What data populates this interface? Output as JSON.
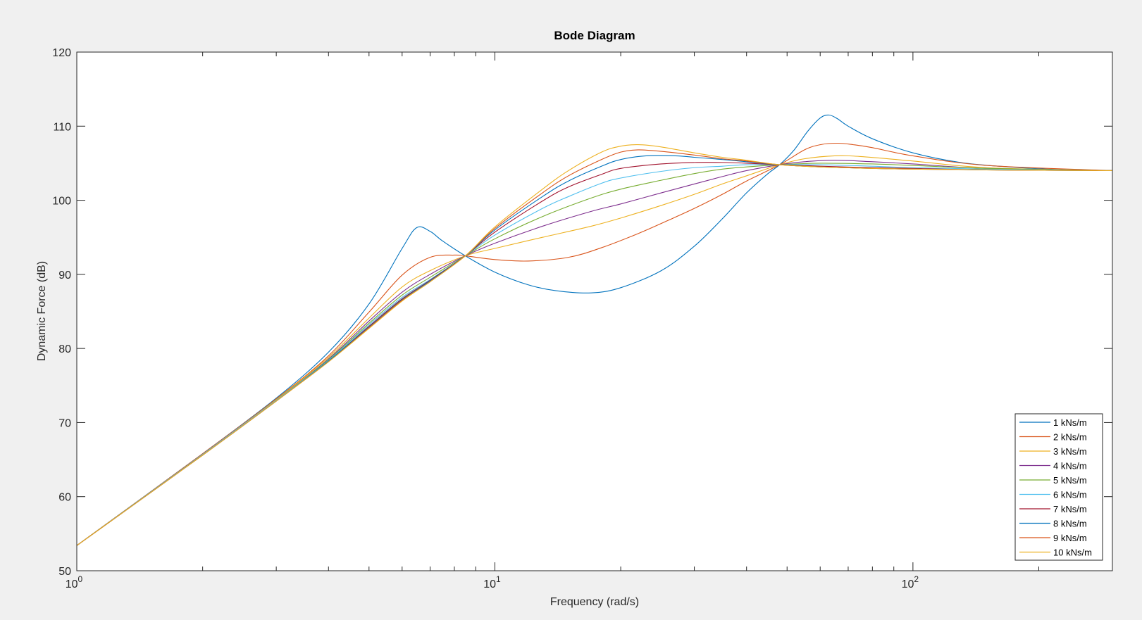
{
  "chart_data": {
    "type": "line",
    "title": "Bode Diagram",
    "xlabel": "Frequency  (rad/s)",
    "ylabel": "Dynamic Force (dB)",
    "xscale": "log",
    "xlim": [
      1,
      300
    ],
    "ylim": [
      50,
      120
    ],
    "x_ticks": [
      {
        "value": 1,
        "base": "10",
        "exp": "0"
      },
      {
        "value": 10,
        "base": "10",
        "exp": "1"
      },
      {
        "value": 100,
        "base": "10",
        "exp": "2"
      }
    ],
    "y_ticks": [
      50,
      60,
      70,
      80,
      90,
      100,
      110,
      120
    ],
    "grid": false,
    "legend_position": "bottom-right",
    "series": [
      {
        "name": "1 kNs/m",
        "color": "#0072BD",
        "x": [
          1,
          2,
          3,
          4,
          5,
          6,
          6.5,
          7,
          7.5,
          8.5,
          10,
          12,
          14,
          17,
          20,
          25,
          30,
          35,
          40,
          45,
          48,
          52,
          56,
          60,
          63,
          66,
          70,
          80,
          100,
          130,
          170,
          230,
          300
        ],
        "y": [
          53.4,
          65.8,
          73.3,
          79.5,
          86,
          93.5,
          96.3,
          95.8,
          94.5,
          92.5,
          90.3,
          88.6,
          87.8,
          87.5,
          88.2,
          90.5,
          93.8,
          97.5,
          101,
          103.6,
          104.8,
          106.8,
          109.3,
          111.1,
          111.5,
          111,
          110,
          108.3,
          106.4,
          105.1,
          104.5,
          104.1,
          104
        ]
      },
      {
        "name": "2 kNs/m",
        "color": "#D95319",
        "x": [
          1,
          2,
          3,
          4,
          5,
          6,
          7,
          8,
          8.5,
          10,
          12,
          15,
          18,
          22,
          26,
          30,
          35,
          40,
          48,
          55,
          60,
          66,
          72,
          80,
          100,
          150,
          300
        ],
        "y": [
          53.4,
          65.8,
          73.2,
          79,
          84.9,
          89.9,
          92.3,
          92.6,
          92.5,
          92,
          91.8,
          92.3,
          93.6,
          95.5,
          97.3,
          98.9,
          100.8,
          102.6,
          104.8,
          106.8,
          107.5,
          107.7,
          107.5,
          107.1,
          106,
          104.7,
          104
        ]
      },
      {
        "name": "3 kNs/m",
        "color": "#EDB120",
        "x": [
          1,
          2,
          3,
          4,
          5,
          6,
          7,
          8.5,
          10,
          13,
          17,
          20,
          25,
          30,
          35,
          40,
          48,
          55,
          65,
          75,
          100,
          150,
          300
        ],
        "y": [
          53.4,
          65.7,
          73.1,
          78.8,
          84.1,
          88.3,
          90.5,
          92.5,
          93.5,
          95,
          96.5,
          97.6,
          99.3,
          100.8,
          102.2,
          103.3,
          104.8,
          105.6,
          106,
          105.9,
          105.3,
          104.4,
          104
        ]
      },
      {
        "name": "4 kNs/m",
        "color": "#7E2F8E",
        "x": [
          1,
          2,
          3,
          4,
          5,
          6,
          7,
          8.5,
          10,
          13,
          17,
          20,
          25,
          30,
          35,
          40,
          48,
          55,
          65,
          80,
          100,
          150,
          300
        ],
        "y": [
          53.4,
          65.7,
          73,
          78.6,
          83.7,
          87.6,
          90,
          92.5,
          94.2,
          96.5,
          98.5,
          99.5,
          101,
          102.2,
          103.2,
          104,
          104.8,
          105.2,
          105.4,
          105.2,
          104.9,
          104.3,
          104
        ]
      },
      {
        "name": "5 kNs/m",
        "color": "#77AC30",
        "x": [
          1,
          2,
          3,
          4,
          5,
          6,
          7,
          8.5,
          10,
          13,
          17,
          20,
          25,
          30,
          35,
          40,
          48,
          60,
          80,
          100,
          150,
          300
        ],
        "y": [
          53.4,
          65.7,
          73,
          78.5,
          83.4,
          87.2,
          89.6,
          92.5,
          94.8,
          97.8,
          100.3,
          101.5,
          102.7,
          103.6,
          104.2,
          104.5,
          104.8,
          105,
          104.9,
          104.7,
          104.3,
          104
        ]
      },
      {
        "name": "6 kNs/m",
        "color": "#4DBEEE",
        "x": [
          1,
          2,
          3,
          4,
          5,
          6,
          7,
          8.5,
          10,
          13,
          15,
          18,
          20,
          25,
          30,
          35,
          40,
          48,
          60,
          80,
          100,
          150,
          300
        ],
        "y": [
          53.4,
          65.7,
          73,
          78.4,
          83.2,
          86.9,
          89.3,
          92.5,
          95.3,
          98.9,
          100.5,
          102.3,
          103,
          103.9,
          104.4,
          104.6,
          104.8,
          104.8,
          104.8,
          104.6,
          104.4,
          104.2,
          104
        ]
      },
      {
        "name": "7 kNs/m",
        "color": "#A2142F",
        "x": [
          1,
          2,
          3,
          4,
          5,
          6,
          7,
          8.5,
          10,
          13,
          15,
          18,
          20,
          25,
          30,
          35,
          40,
          48,
          60,
          80,
          100,
          150,
          300
        ],
        "y": [
          53.4,
          65.6,
          72.9,
          78.3,
          83,
          86.7,
          89.2,
          92.5,
          95.7,
          99.9,
          101.8,
          103.5,
          104.3,
          104.9,
          105.1,
          105.1,
          105,
          104.8,
          104.6,
          104.4,
          104.3,
          104.1,
          104
        ]
      },
      {
        "name": "8 kNs/m",
        "color": "#0072BD",
        "x": [
          1,
          2,
          3,
          4,
          5,
          6,
          7,
          8.5,
          10,
          13,
          15,
          18,
          20,
          23,
          27,
          30,
          35,
          40,
          48,
          60,
          80,
          100,
          150,
          300
        ],
        "y": [
          53.4,
          65.6,
          72.9,
          78.3,
          82.9,
          86.6,
          89.1,
          92.5,
          96,
          100.5,
          102.6,
          104.6,
          105.5,
          106,
          106,
          105.8,
          105.5,
          105.2,
          104.8,
          104.5,
          104.3,
          104.2,
          104.1,
          104
        ]
      },
      {
        "name": "9 kNs/m",
        "color": "#D95319",
        "x": [
          1,
          2,
          3,
          4,
          5,
          6,
          7,
          8.5,
          10,
          13,
          15,
          18,
          20,
          22,
          25,
          30,
          35,
          40,
          48,
          60,
          80,
          100,
          150,
          300
        ],
        "y": [
          53.4,
          65.6,
          72.9,
          78.2,
          82.8,
          86.5,
          89,
          92.5,
          96.2,
          101,
          103.3,
          105.5,
          106.5,
          106.8,
          106.6,
          106.1,
          105.6,
          105.3,
          104.8,
          104.5,
          104.3,
          104.2,
          104.1,
          104
        ]
      },
      {
        "name": "10 kNs/m",
        "color": "#EDB120",
        "x": [
          1,
          2,
          3,
          4,
          5,
          6,
          7,
          8.5,
          10,
          13,
          15,
          18,
          20,
          22,
          25,
          30,
          35,
          40,
          48,
          60,
          80,
          100,
          150,
          300
        ],
        "y": [
          53.4,
          65.6,
          72.9,
          78.2,
          82.7,
          86.4,
          89,
          92.5,
          96.4,
          101.5,
          104,
          106.5,
          107.3,
          107.5,
          107.2,
          106.4,
          105.8,
          105.4,
          104.8,
          104.5,
          104.3,
          104.2,
          104.1,
          104
        ]
      }
    ]
  }
}
